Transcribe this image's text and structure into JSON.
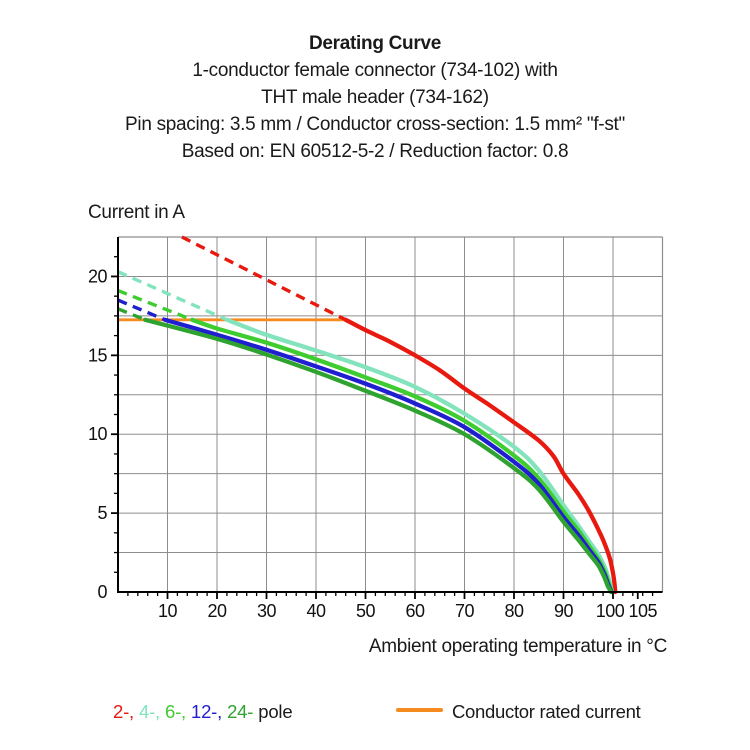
{
  "title": {
    "line1": "Derating Curve",
    "line2": "1-conductor female connector (734-102) with",
    "line3": "THT male header (734-162)",
    "line4": "Pin spacing: 3.5 mm / Conductor cross-section: 1.5 mm² \"f-st\"",
    "line5": "Based on: EN 60512-5-2 / Reduction factor: 0.8"
  },
  "axes": {
    "y_label": "Current in A",
    "x_label": "Ambient operating temperature in °C"
  },
  "legend": {
    "poles": [
      {
        "label": "2-,",
        "color": "#e8190f"
      },
      {
        "label": "4-,",
        "color": "#82e3bd"
      },
      {
        "label": "6-,",
        "color": "#3fcc30"
      },
      {
        "label": "12-,",
        "color": "#201fd0"
      },
      {
        "label": "24-",
        "color": "#2fa32f"
      },
      {
        "label": "pole",
        "color": "#1a1a1a"
      }
    ],
    "rated_label": "Conductor rated current",
    "rated_color": "#f68b1f"
  },
  "chart_data": {
    "type": "line",
    "title": "Derating Curve",
    "xlabel": "Ambient operating temperature in °C",
    "ylabel": "Current in A",
    "xlim": [
      0,
      110
    ],
    "ylim": [
      0,
      22.5
    ],
    "x_tick_labels": [
      10,
      20,
      30,
      40,
      50,
      60,
      70,
      80,
      90,
      100,
      105
    ],
    "y_tick_labels": [
      0,
      5,
      10,
      15,
      20
    ],
    "x_grid_step": 10,
    "y_grid_step": 2.5,
    "x_minor_step": 2,
    "y_minor_step": 1.25,
    "grid": true,
    "grid_color": "#8d8d8d",
    "legend_position": "bottom",
    "rated_line": {
      "label": "Conductor rated current",
      "y": 17.25,
      "x_from": 0,
      "x_to": 46,
      "color": "#f68b1f"
    },
    "series": [
      {
        "name": "2-pole",
        "color": "#e8190f",
        "dashed": [
          [
            12.9,
            22.5
          ],
          [
            46,
            17.25
          ]
        ],
        "solid": [
          [
            46,
            17.25
          ],
          [
            50,
            16.6
          ],
          [
            55,
            15.85
          ],
          [
            60,
            15.0
          ],
          [
            65,
            14.05
          ],
          [
            70,
            12.9
          ],
          [
            75,
            11.85
          ],
          [
            80,
            10.75
          ],
          [
            85,
            9.6
          ],
          [
            88,
            8.6
          ],
          [
            90,
            7.5
          ],
          [
            93,
            6.2
          ],
          [
            95,
            5.2
          ],
          [
            96.5,
            4.3
          ],
          [
            98,
            3.3
          ],
          [
            99.3,
            2.2
          ],
          [
            100.0,
            1.2
          ],
          [
            100.35,
            0.4
          ],
          [
            100.45,
            0
          ]
        ]
      },
      {
        "name": "4-pole",
        "color": "#82e3bd",
        "dashed": [
          [
            0,
            20.3
          ],
          [
            22,
            17.25
          ]
        ],
        "solid": [
          [
            22,
            17.25
          ],
          [
            30,
            16.3
          ],
          [
            40,
            15.3
          ],
          [
            50,
            14.25
          ],
          [
            60,
            13.0
          ],
          [
            70,
            11.3
          ],
          [
            80,
            9.2
          ],
          [
            85,
            7.7
          ],
          [
            90,
            5.5
          ],
          [
            93,
            4.2
          ],
          [
            95,
            3.3
          ],
          [
            97,
            2.4
          ],
          [
            98.3,
            1.6
          ],
          [
            99.2,
            0.8
          ],
          [
            99.65,
            0.2
          ],
          [
            99.75,
            0
          ]
        ]
      },
      {
        "name": "6-pole",
        "color": "#3fcc30",
        "dashed": [
          [
            0,
            19.1
          ],
          [
            15,
            17.25
          ]
        ],
        "solid": [
          [
            15,
            17.25
          ],
          [
            20,
            16.7
          ],
          [
            30,
            15.8
          ],
          [
            40,
            14.75
          ],
          [
            50,
            13.6
          ],
          [
            60,
            12.4
          ],
          [
            70,
            10.85
          ],
          [
            80,
            8.65
          ],
          [
            85,
            7.2
          ],
          [
            90,
            5.1
          ],
          [
            93,
            3.9
          ],
          [
            95,
            3.0
          ],
          [
            97,
            2.1
          ],
          [
            98.3,
            1.3
          ],
          [
            99.1,
            0.6
          ],
          [
            99.6,
            0.15
          ],
          [
            99.7,
            0
          ]
        ]
      },
      {
        "name": "12-pole",
        "color": "#201fd0",
        "dashed": [
          [
            0,
            18.5
          ],
          [
            9.5,
            17.25
          ]
        ],
        "solid": [
          [
            9.5,
            17.25
          ],
          [
            20,
            16.3
          ],
          [
            30,
            15.35
          ],
          [
            40,
            14.3
          ],
          [
            50,
            13.2
          ],
          [
            60,
            11.95
          ],
          [
            70,
            10.45
          ],
          [
            80,
            8.25
          ],
          [
            85,
            6.85
          ],
          [
            90,
            4.75
          ],
          [
            93,
            3.6
          ],
          [
            95,
            2.75
          ],
          [
            97,
            1.9
          ],
          [
            98.3,
            1.1
          ],
          [
            99.0,
            0.5
          ],
          [
            99.55,
            0.1
          ],
          [
            99.65,
            0
          ]
        ]
      },
      {
        "name": "24-pole",
        "color": "#2fa32f",
        "dashed": [
          [
            0,
            17.95
          ],
          [
            5.5,
            17.25
          ]
        ],
        "solid": [
          [
            5.5,
            17.25
          ],
          [
            20,
            16.05
          ],
          [
            30,
            15.05
          ],
          [
            40,
            13.95
          ],
          [
            50,
            12.75
          ],
          [
            60,
            11.5
          ],
          [
            70,
            10.0
          ],
          [
            80,
            7.85
          ],
          [
            85,
            6.5
          ],
          [
            90,
            4.45
          ],
          [
            93,
            3.3
          ],
          [
            95,
            2.5
          ],
          [
            97,
            1.7
          ],
          [
            98.3,
            0.9
          ],
          [
            98.9,
            0.4
          ],
          [
            99.5,
            0.08
          ],
          [
            99.6,
            0
          ]
        ]
      }
    ]
  }
}
